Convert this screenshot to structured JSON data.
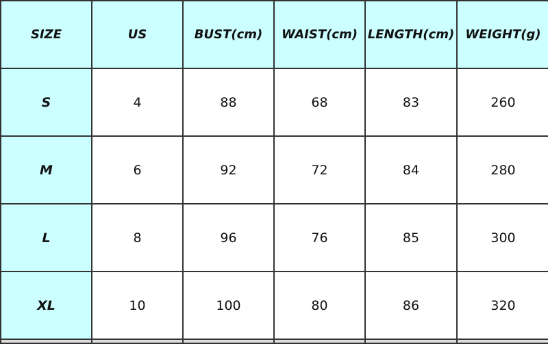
{
  "headers": [
    "SIZE",
    "US",
    "BUST(cm)",
    "WAIST(cm)",
    "LENGTH(cm)",
    "WEIGHT(g)"
  ],
  "rows": [
    [
      "S",
      "4",
      "88",
      "68",
      "83",
      "260"
    ],
    [
      "M",
      "6",
      "92",
      "72",
      "84",
      "280"
    ],
    [
      "L",
      "8",
      "96",
      "76",
      "85",
      "300"
    ],
    [
      "XL",
      "10",
      "100",
      "80",
      "86",
      "320"
    ]
  ],
  "colors": {
    "header_bg": "#ccffff",
    "cell_bg": "#ffffff",
    "border": "#333333"
  }
}
